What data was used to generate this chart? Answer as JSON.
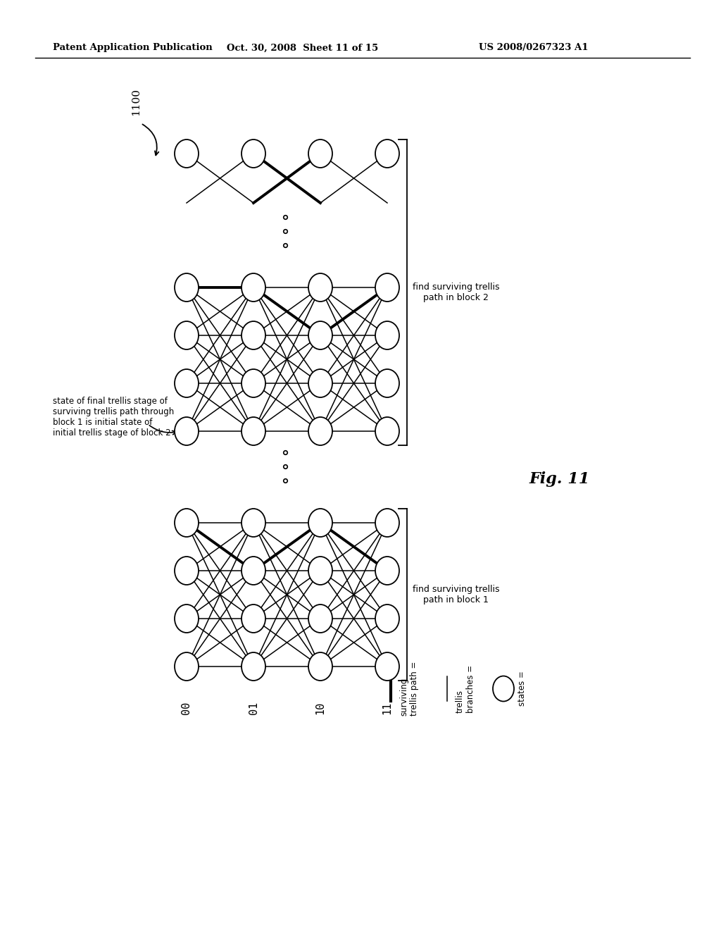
{
  "title_left": "Patent Application Publication",
  "title_mid": "Oct. 30, 2008  Sheet 11 of 15",
  "title_right": "US 2008/0267323 A1",
  "fig_label": "Fig. 11",
  "fig_number": "1100",
  "state_labels": [
    "00",
    "01",
    "10",
    "11"
  ],
  "background_color": "#ffffff",
  "annotation_left": "state of final trellis stage of\nsurviving trellis path through\nblock 1 is initial state of\ninitial trellis stage of block 2",
  "label_block2": "find surviving trellis\npath in block 2",
  "label_block1": "find surviving trellis\npath in block 1",
  "legend_surviving": "surviving\ntrellis path =",
  "legend_trellis": "trellis\nbranches =",
  "legend_states": "states ="
}
